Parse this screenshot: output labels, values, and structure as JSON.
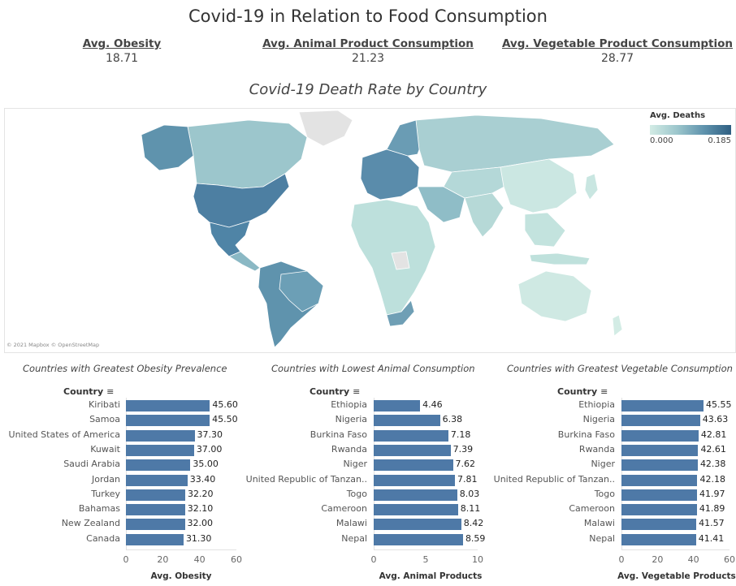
{
  "header": {
    "title": "Covid-19 in Relation to Food Consumption",
    "kpis": [
      {
        "label": "Avg. Obesity",
        "value": "18.71"
      },
      {
        "label": "Avg. Animal Product Consumption",
        "value": "21.23"
      },
      {
        "label": "Avg. Vegetable Product Consumption",
        "value": "28.77"
      }
    ]
  },
  "map": {
    "title": "Covid-19 Death Rate by Country",
    "legend_title": "Avg. Deaths",
    "legend_min": "0.000",
    "legend_max": "0.185",
    "credit": "© 2021 Mapbox © OpenStreetMap",
    "colors": {
      "low": "#d3ece5",
      "mid": "#9cc6cc",
      "high": "#2f5f82",
      "land_nodata": "#e3e3e3"
    }
  },
  "colors": {
    "bar": "#4e79a7"
  },
  "chart_data": [
    {
      "type": "bar",
      "title": "Countries with Greatest Obesity Prevalence",
      "dimension_label": "Country",
      "xlabel": "Avg. Obesity",
      "categories": [
        "Kiribati",
        "Samoa",
        "United States of America",
        "Kuwait",
        "Saudi Arabia",
        "Jordan",
        "Turkey",
        "Bahamas",
        "New Zealand",
        "Canada"
      ],
      "values": [
        45.6,
        45.5,
        37.3,
        37.0,
        35.0,
        33.4,
        32.2,
        32.1,
        32.0,
        31.3
      ],
      "labels": [
        "45.60",
        "45.50",
        "37.30",
        "37.00",
        "35.00",
        "33.40",
        "32.20",
        "32.10",
        "32.00",
        "31.30"
      ],
      "xlim": [
        0,
        60
      ],
      "ticks": [
        0,
        20,
        40,
        60
      ]
    },
    {
      "type": "bar",
      "title": "Countries with Lowest Animal Consumption",
      "dimension_label": "Country",
      "xlabel": "Avg. Animal Products",
      "categories": [
        "Ethiopia",
        "Nigeria",
        "Burkina Faso",
        "Rwanda",
        "Niger",
        "United Republic of Tanzan..",
        "Togo",
        "Cameroon",
        "Malawi",
        "Nepal"
      ],
      "values": [
        4.46,
        6.38,
        7.18,
        7.39,
        7.62,
        7.81,
        8.03,
        8.11,
        8.42,
        8.59
      ],
      "labels": [
        "4.46",
        "6.38",
        "7.18",
        "7.39",
        "7.62",
        "7.81",
        "8.03",
        "8.11",
        "8.42",
        "8.59"
      ],
      "xlim": [
        0,
        10
      ],
      "ticks": [
        0,
        5,
        10
      ]
    },
    {
      "type": "bar",
      "title": "Countries with Greatest Vegetable Consumption",
      "dimension_label": "Country",
      "xlabel": "Avg. Vegetable Products",
      "categories": [
        "Ethiopia",
        "Nigeria",
        "Burkina Faso",
        "Rwanda",
        "Niger",
        "United Republic of Tanzan..",
        "Togo",
        "Cameroon",
        "Malawi",
        "Nepal"
      ],
      "values": [
        45.55,
        43.63,
        42.81,
        42.61,
        42.38,
        42.18,
        41.97,
        41.89,
        41.57,
        41.41
      ],
      "labels": [
        "45.55",
        "43.63",
        "42.81",
        "42.61",
        "42.38",
        "42.18",
        "41.97",
        "41.89",
        "41.57",
        "41.41"
      ],
      "xlim": [
        0,
        60
      ],
      "ticks": [
        0,
        20,
        40,
        60
      ]
    }
  ]
}
